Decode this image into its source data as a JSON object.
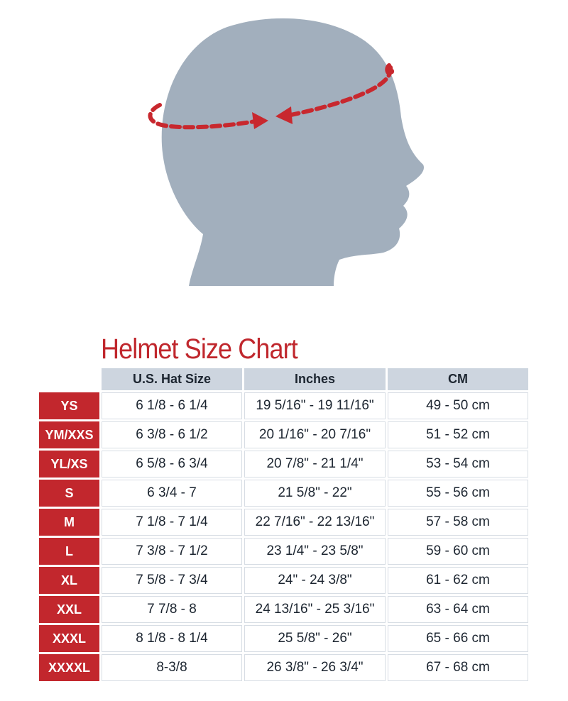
{
  "title": "Helmet Size Chart",
  "colors": {
    "accent_red": "#c2272d",
    "head_grey": "#a2afbd",
    "header_bg": "#cdd5df"
  },
  "icons": {
    "illustration": "head-silhouette-with-measuring-band"
  },
  "table": {
    "headers": [
      "U.S. Hat Size",
      "Inches",
      "CM"
    ],
    "rows": [
      {
        "size": "YS",
        "hat": "6 1/8 - 6 1/4",
        "inches": "19 5/16\" - 19 11/16\"",
        "cm": "49 - 50 cm"
      },
      {
        "size": "YM/XXS",
        "hat": "6 3/8 - 6 1/2",
        "inches": "20 1/16\" - 20 7/16\"",
        "cm": "51 - 52 cm"
      },
      {
        "size": "YL/XS",
        "hat": "6 5/8 - 6 3/4",
        "inches": "20 7/8\" - 21 1/4\"",
        "cm": "53 - 54 cm"
      },
      {
        "size": "S",
        "hat": "6 3/4 - 7",
        "inches": "21 5/8\" - 22\"",
        "cm": "55 - 56 cm"
      },
      {
        "size": "M",
        "hat": "7 1/8 - 7 1/4",
        "inches": "22 7/16\" - 22 13/16\"",
        "cm": "57 - 58 cm"
      },
      {
        "size": "L",
        "hat": "7 3/8 - 7 1/2",
        "inches": "23 1/4\" - 23 5/8\"",
        "cm": "59 - 60 cm"
      },
      {
        "size": "XL",
        "hat": "7 5/8 - 7 3/4",
        "inches": "24\" - 24 3/8\"",
        "cm": "61 - 62 cm"
      },
      {
        "size": "XXL",
        "hat": "7 7/8 - 8",
        "inches": "24 13/16\" - 25 3/16\"",
        "cm": "63 - 64 cm"
      },
      {
        "size": "XXXL",
        "hat": "8 1/8 - 8 1/4",
        "inches": "25 5/8\" - 26\"",
        "cm": "65 - 66 cm"
      },
      {
        "size": "XXXXL",
        "hat": "8-3/8",
        "inches": "26 3/8\" - 26 3/4\"",
        "cm": "67 - 68 cm"
      }
    ]
  }
}
